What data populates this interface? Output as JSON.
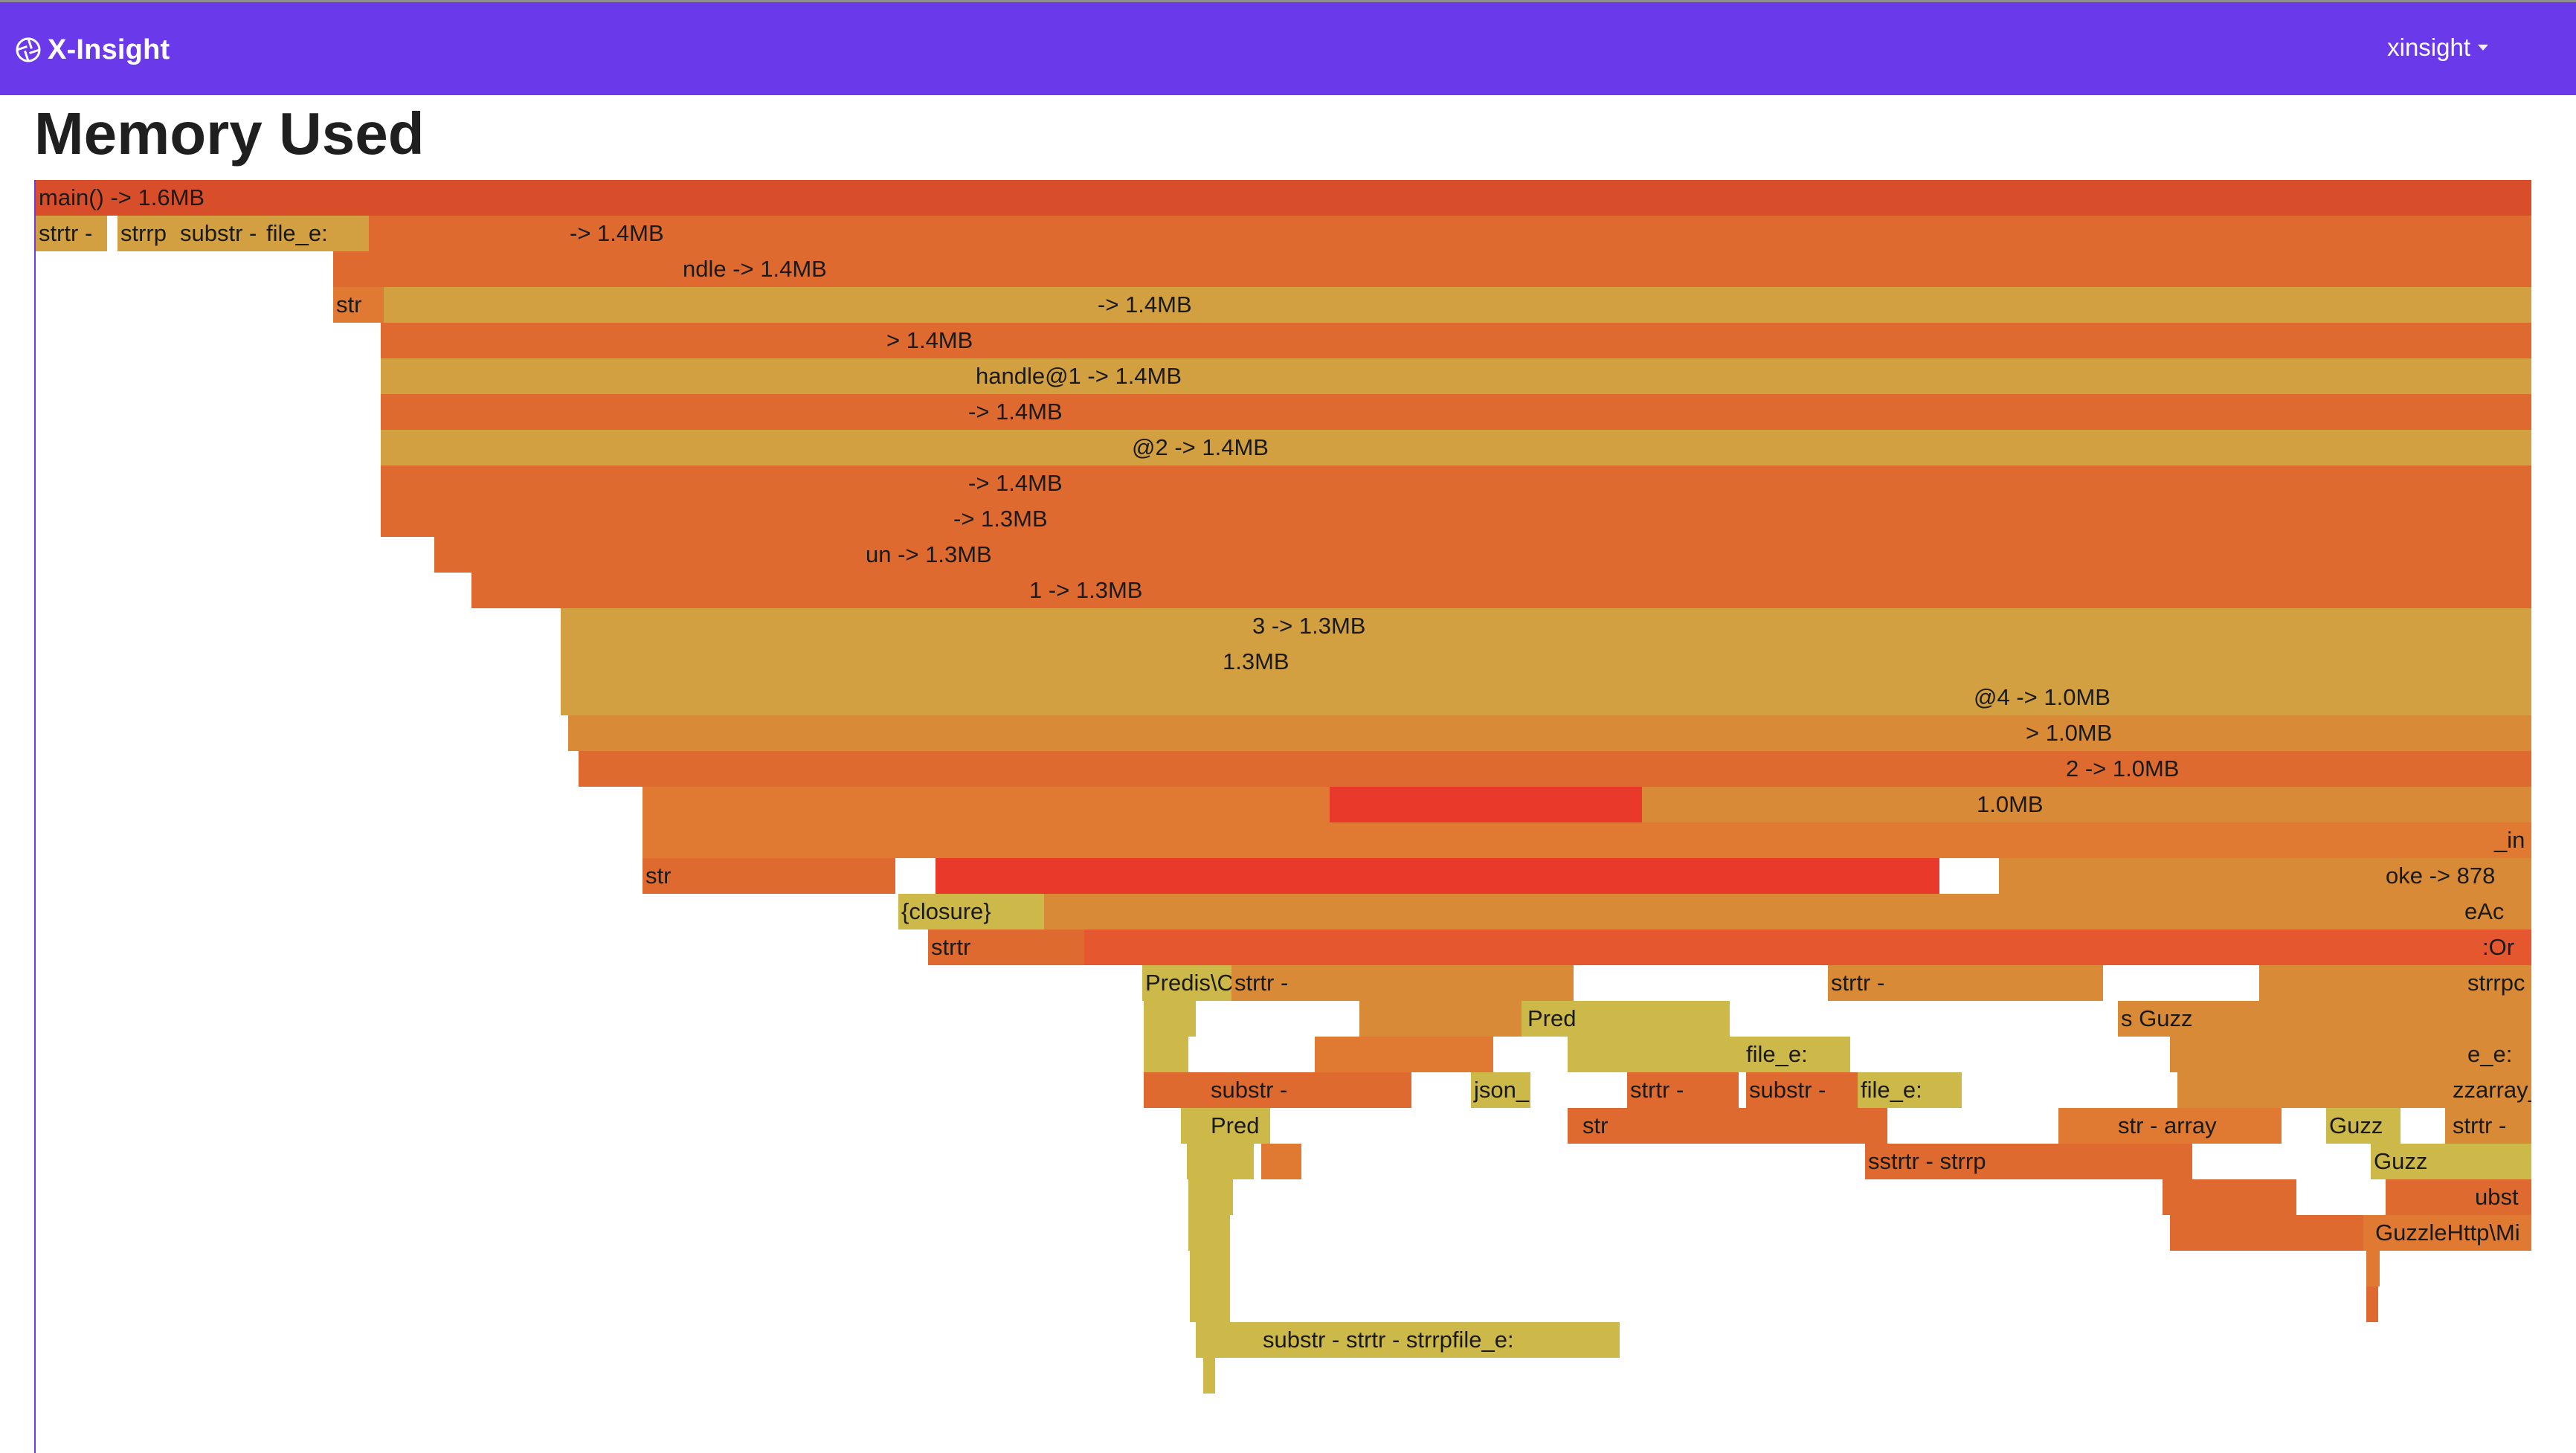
{
  "navbar": {
    "brand_name": "X-Insight",
    "brand_icon": "aperture-icon",
    "user_label": "xinsight",
    "accent_color": "#6a3aea"
  },
  "page": {
    "title": "Memory Used"
  },
  "flamegraph": {
    "frames": [
      {
        "label": "main() -> 1.6MB",
        "depth": 0
      },
      {
        "label": "strtr -",
        "depth": 1
      },
      {
        "label": "strrp",
        "depth": 1
      },
      {
        "label": "substr -",
        "depth": 1
      },
      {
        "label": "file_e:",
        "depth": 1
      },
      {
        "label": "-> 1.4MB",
        "depth": 1
      },
      {
        "label": "ndle -> 1.4MB",
        "depth": 2
      },
      {
        "label": "str",
        "depth": 3
      },
      {
        "label": "-> 1.4MB",
        "depth": 3
      },
      {
        "label": "> 1.4MB",
        "depth": 4
      },
      {
        "label": "handle@1 -> 1.4MB",
        "depth": 5
      },
      {
        "label": "-> 1.4MB",
        "depth": 6
      },
      {
        "label": "@2 -> 1.4MB",
        "depth": 7
      },
      {
        "label": "-> 1.4MB",
        "depth": 8
      },
      {
        "label": "-> 1.3MB",
        "depth": 9
      },
      {
        "label": "un -> 1.3MB",
        "depth": 10
      },
      {
        "label": "1 -> 1.3MB",
        "depth": 11
      },
      {
        "label": "3 -> 1.3MB",
        "depth": 12
      },
      {
        "label": "1.3MB",
        "depth": 13
      },
      {
        "label": "@4 -> 1.0MB",
        "depth": 14
      },
      {
        "label": "> 1.0MB",
        "depth": 15
      },
      {
        "label": "2 -> 1.0MB",
        "depth": 16
      },
      {
        "label": "1.0MB",
        "depth": 17
      },
      {
        "label": "_in",
        "depth": 18
      },
      {
        "label": "str",
        "depth": 19
      },
      {
        "label": "oke -> 878",
        "depth": 19
      },
      {
        "label": "{closure}",
        "depth": 20
      },
      {
        "label": "eAc",
        "depth": 20
      },
      {
        "label": "strtr",
        "depth": 21
      },
      {
        "label": ":Or",
        "depth": 21
      },
      {
        "label": "Predis\\C",
        "depth": 22
      },
      {
        "label": "strtr -",
        "depth": 22
      },
      {
        "label": "strtr -",
        "depth": 22
      },
      {
        "label": "strrpc",
        "depth": 22
      },
      {
        "label": "Pred",
        "depth": 23
      },
      {
        "label": "s",
        "depth": 23
      },
      {
        "label": "Guzz",
        "depth": 23
      },
      {
        "label": "substr -",
        "depth": 24
      },
      {
        "label": "json_",
        "depth": 24
      },
      {
        "label": "strtr -",
        "depth": 24
      },
      {
        "label": "substr -",
        "depth": 24
      },
      {
        "label": "file_e:",
        "depth": 24
      },
      {
        "label": "file_e:",
        "depth": 23
      },
      {
        "label": "e_e:",
        "depth": 23
      },
      {
        "label": "zzarray_",
        "depth": 24
      },
      {
        "label": "Pred",
        "depth": 25
      },
      {
        "label": "str",
        "depth": 25
      },
      {
        "label": "str - array",
        "depth": 25
      },
      {
        "label": "Guzz",
        "depth": 25
      },
      {
        "label": "strtr -",
        "depth": 25
      },
      {
        "label": "sstrtr -",
        "depth": 26
      },
      {
        "label": "strrp",
        "depth": 26
      },
      {
        "label": "Guzz",
        "depth": 26
      },
      {
        "label": "ubst",
        "depth": 27
      },
      {
        "label": "GuzzleHttp\\Mi",
        "depth": 28
      },
      {
        "label": "substr -",
        "depth": 31
      },
      {
        "label": "strtr -",
        "depth": 31
      },
      {
        "label": "strrp",
        "depth": 31
      },
      {
        "label": "file_e:",
        "depth": 31
      }
    ],
    "palette": [
      "#d94e2a",
      "#df6a30",
      "#d2a040",
      "#e07a33",
      "#e8392b",
      "#cdb84a",
      "#e5582f",
      "#d88a36"
    ]
  }
}
